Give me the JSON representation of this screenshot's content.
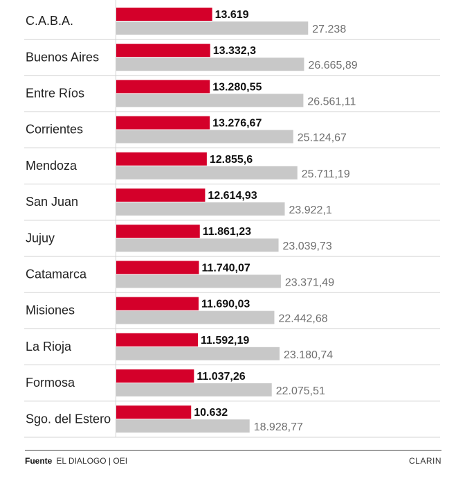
{
  "chart_data": {
    "type": "bar",
    "categories": [
      "C.A.B.A.",
      "Buenos Aires",
      "Entre Ríos",
      "Corrientes",
      "Mendoza",
      "San Juan",
      "Jujuy",
      "Catamarca",
      "Misiones",
      "La Rioja",
      "Formosa",
      "Sgo. del Estero"
    ],
    "series": [
      {
        "color": "#d4002a",
        "values": [
          13619,
          13332.3,
          13280.55,
          13276.67,
          12855.6,
          12614.93,
          11861.23,
          11740.07,
          11690.03,
          11592.19,
          11037.26,
          10632
        ],
        "labels": [
          "13.619",
          "13.332,3",
          "13.280,55",
          "13.276,67",
          "12.855,6",
          "12.614,93",
          "11.861,23",
          "11.740,07",
          "11.690,03",
          "11.592,19",
          "11.037,26",
          "10.632"
        ]
      },
      {
        "color": "#c8c8c8",
        "values": [
          27238,
          26665.89,
          26561.11,
          25124.67,
          25711.19,
          23922.1,
          23039.73,
          23371.49,
          22442.68,
          23180.74,
          22075.51,
          18928.77
        ],
        "labels": [
          "27.238",
          "26.665,89",
          "26.561,11",
          "25.124,67",
          "25.711,19",
          "23.922,1",
          "23.039,73",
          "23.371,49",
          "22.442,68",
          "23.180,74",
          "22.075,51",
          "18.928,77"
        ]
      }
    ],
    "title": "",
    "xlabel": "",
    "ylabel": "",
    "xlim": [
      0,
      39300
    ],
    "grid": false,
    "legend": "none"
  },
  "footer": {
    "source_label": "Fuente",
    "source_text": "EL DIALOGO | OEI",
    "brand": "CLARIN"
  }
}
